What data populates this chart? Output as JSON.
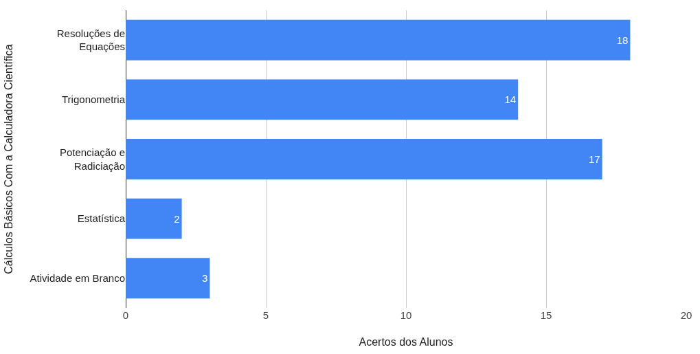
{
  "chart_data": {
    "type": "bar",
    "orientation": "horizontal",
    "categories": [
      "Resoluções de Equações",
      "Trigonometria",
      "Potenciação e Radiciação",
      "Estatística",
      "Atividade em Branco"
    ],
    "values": [
      18,
      14,
      17,
      2,
      3
    ],
    "color": "#4285f4",
    "xlabel": "Acertos dos Alunos",
    "ylabel": "Cálculos Básicos Com a Calculadora Científica",
    "xlim": [
      0,
      20
    ],
    "xticks": [
      0,
      5,
      10,
      15,
      20
    ],
    "grid": "x",
    "data_labels": true
  }
}
